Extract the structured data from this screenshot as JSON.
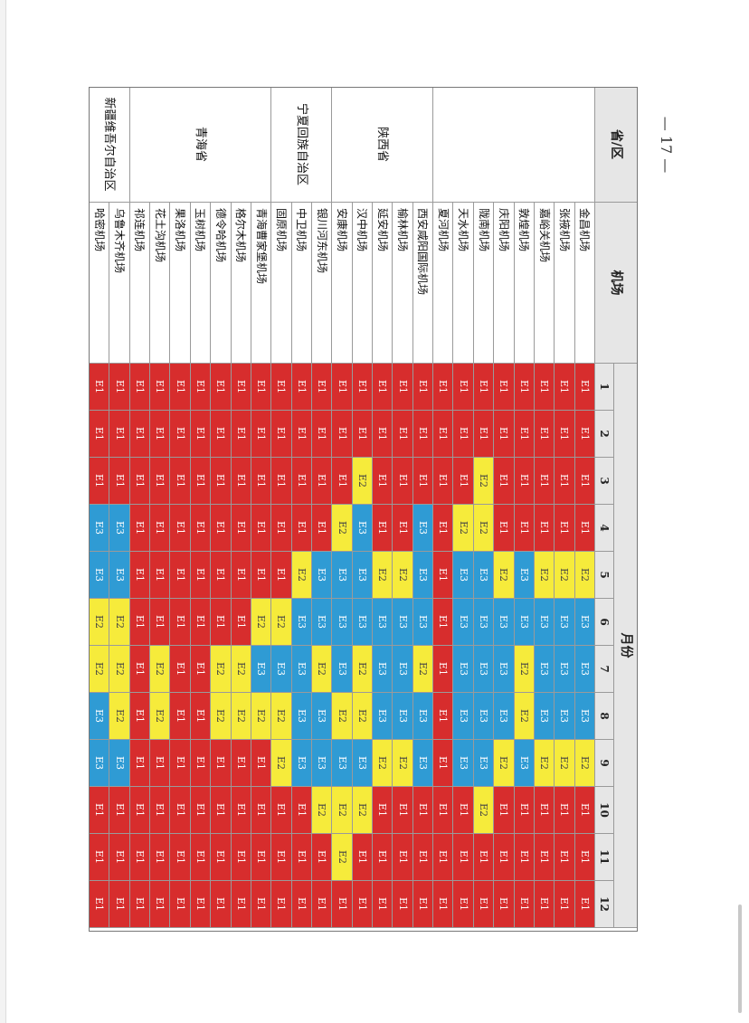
{
  "header": {
    "province": "省/区",
    "airport": "机场",
    "month": "月份",
    "months": [
      "1",
      "2",
      "3",
      "4",
      "5",
      "6",
      "7",
      "8",
      "9",
      "10",
      "11",
      "12"
    ]
  },
  "page_number": "— 17 —",
  "colors": {
    "E1": "#d72d2d",
    "E2": "#f6eb3b",
    "E3": "#2f9bd4"
  },
  "provinces": [
    {
      "name": "",
      "row_count": 8
    },
    {
      "name": "陕西省",
      "row_count": 5
    },
    {
      "name": "宁夏回族自治区",
      "row_count": 3
    },
    {
      "name": "青海省",
      "row_count": 7
    },
    {
      "name": "新疆维吾尔自治区",
      "row_count": 2
    }
  ],
  "rows": [
    {
      "airport": "金昌机场",
      "months": [
        "E1",
        "E1",
        "E1",
        "E1",
        "E2",
        "E3",
        "E3",
        "E3",
        "E2",
        "E1",
        "E1",
        "E1"
      ]
    },
    {
      "airport": "张掖机场",
      "months": [
        "E1",
        "E1",
        "E1",
        "E1",
        "E2",
        "E3",
        "E3",
        "E3",
        "E2",
        "E1",
        "E1",
        "E1"
      ]
    },
    {
      "airport": "嘉峪关机场",
      "months": [
        "E1",
        "E1",
        "E1",
        "E1",
        "E2",
        "E3",
        "E3",
        "E3",
        "E2",
        "E1",
        "E1",
        "E1"
      ]
    },
    {
      "airport": "敦煌机场",
      "months": [
        "E1",
        "E1",
        "E1",
        "E1",
        "E3",
        "E3",
        "E2",
        "E2",
        "E3",
        "E1",
        "E1",
        "E1"
      ]
    },
    {
      "airport": "庆阳机场",
      "months": [
        "E1",
        "E1",
        "E1",
        "E1",
        "E2",
        "E3",
        "E3",
        "E3",
        "E2",
        "E1",
        "E1",
        "E1"
      ]
    },
    {
      "airport": "陇南机场",
      "months": [
        "E1",
        "E1",
        "E2",
        "E2",
        "E3",
        "E3",
        "E3",
        "E3",
        "E3",
        "E2",
        "E1",
        "E1"
      ]
    },
    {
      "airport": "天水机场",
      "months": [
        "E1",
        "E1",
        "E1",
        "E2",
        "E3",
        "E3",
        "E3",
        "E3",
        "E3",
        "E1",
        "E1",
        "E1"
      ]
    },
    {
      "airport": "夏河机场",
      "months": [
        "E1",
        "E1",
        "E1",
        "E1",
        "E1",
        "E1",
        "E1",
        "E1",
        "E1",
        "E1",
        "E1",
        "E1"
      ]
    },
    {
      "airport": "西安咸阳国际机场",
      "months": [
        "E1",
        "E1",
        "E1",
        "E3",
        "E3",
        "E3",
        "E2",
        "E3",
        "E3",
        "E1",
        "E1",
        "E1"
      ]
    },
    {
      "airport": "榆林机场",
      "months": [
        "E1",
        "E1",
        "E1",
        "E1",
        "E2",
        "E3",
        "E3",
        "E3",
        "E2",
        "E1",
        "E1",
        "E1"
      ]
    },
    {
      "airport": "延安机场",
      "months": [
        "E1",
        "E1",
        "E1",
        "E1",
        "E2",
        "E3",
        "E3",
        "E3",
        "E2",
        "E1",
        "E1",
        "E1"
      ]
    },
    {
      "airport": "汉中机场",
      "months": [
        "E1",
        "E1",
        "E2",
        "E3",
        "E3",
        "E3",
        "E2",
        "E2",
        "E3",
        "E2",
        "E1",
        "E1"
      ]
    },
    {
      "airport": "安康机场",
      "months": [
        "E1",
        "E1",
        "E1",
        "E2",
        "E3",
        "E3",
        "E3",
        "E2",
        "E3",
        "E2",
        "E2",
        "E1"
      ]
    },
    {
      "airport": "银川河东机场",
      "months": [
        "E1",
        "E1",
        "E1",
        "E1",
        "E3",
        "E3",
        "E2",
        "E3",
        "E3",
        "E2",
        "E1",
        "E1"
      ]
    },
    {
      "airport": "中卫机场",
      "months": [
        "E1",
        "E1",
        "E1",
        "E1",
        "E2",
        "E3",
        "E3",
        "E3",
        "E3",
        "E1",
        "E1",
        "E1"
      ]
    },
    {
      "airport": "固原机场",
      "months": [
        "E1",
        "E1",
        "E1",
        "E1",
        "E1",
        "E2",
        "E3",
        "E2",
        "E2",
        "E1",
        "E1",
        "E1"
      ]
    },
    {
      "airport": "青海曹家堡机场",
      "months": [
        "E1",
        "E1",
        "E1",
        "E1",
        "E1",
        "E2",
        "E3",
        "E2",
        "E1",
        "E1",
        "E1",
        "E1"
      ]
    },
    {
      "airport": "格尔木机场",
      "months": [
        "E1",
        "E1",
        "E1",
        "E1",
        "E1",
        "E1",
        "E2",
        "E2",
        "E1",
        "E1",
        "E1",
        "E1"
      ]
    },
    {
      "airport": "德令哈机场",
      "months": [
        "E1",
        "E1",
        "E1",
        "E1",
        "E1",
        "E1",
        "E2",
        "E2",
        "E1",
        "E1",
        "E1",
        "E1"
      ]
    },
    {
      "airport": "玉树机场",
      "months": [
        "E1",
        "E1",
        "E1",
        "E1",
        "E1",
        "E1",
        "E1",
        "E1",
        "E1",
        "E1",
        "E1",
        "E1"
      ]
    },
    {
      "airport": "果洛机场",
      "months": [
        "E1",
        "E1",
        "E1",
        "E1",
        "E1",
        "E1",
        "E1",
        "E1",
        "E1",
        "E1",
        "E1",
        "E1"
      ]
    },
    {
      "airport": "花土沟机场",
      "months": [
        "E1",
        "E1",
        "E1",
        "E1",
        "E1",
        "E1",
        "E2",
        "E2",
        "E1",
        "E1",
        "E1",
        "E1"
      ]
    },
    {
      "airport": "祁连机场",
      "months": [
        "E1",
        "E1",
        "E1",
        "E1",
        "E1",
        "E1",
        "E1",
        "E1",
        "E1",
        "E1",
        "E1",
        "E1"
      ]
    },
    {
      "airport": "乌鲁木齐机场",
      "months": [
        "E1",
        "E1",
        "E1",
        "E3",
        "E3",
        "E2",
        "E2",
        "E2",
        "E3",
        "E1",
        "E1",
        "E1"
      ]
    },
    {
      "airport": "哈密机场",
      "months": [
        "E1",
        "E1",
        "E1",
        "E3",
        "E3",
        "E2",
        "E2",
        "E3",
        "E3",
        "E1",
        "E1",
        "E1"
      ]
    }
  ]
}
